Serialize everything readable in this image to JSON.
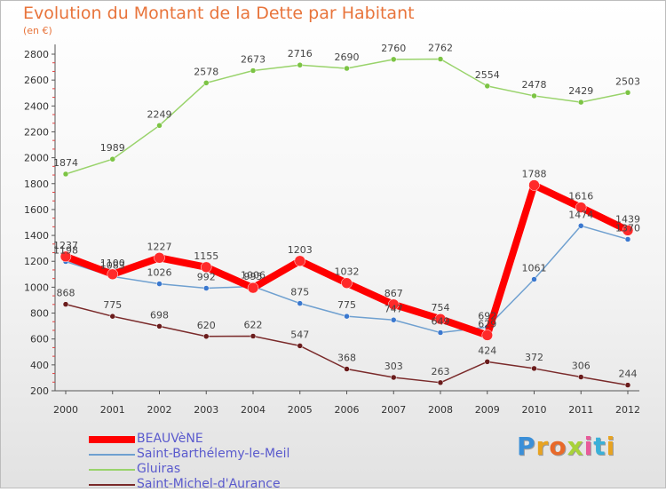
{
  "chart_data": {
    "type": "line",
    "title": "Evolution du Montant de la Dette par Habitant",
    "subtitle": "(en €)",
    "x": [
      "2000",
      "2001",
      "2002",
      "2003",
      "2004",
      "2005",
      "2006",
      "2007",
      "2008",
      "2009",
      "2010",
      "2011",
      "2012"
    ],
    "yticks": [
      200,
      400,
      600,
      800,
      1000,
      1200,
      1400,
      1600,
      1800,
      2000,
      2200,
      2400,
      2600,
      2800
    ],
    "ylim": [
      200,
      2800
    ],
    "grid": false,
    "legend_position": "bottom-left",
    "series": [
      {
        "name": "BEAUVèNE",
        "color": "#ff0000",
        "marker": "#ff2a2a",
        "width": 8,
        "values": [
          1237,
          1100,
          1227,
          1155,
          995,
          1203,
          1032,
          867,
          754,
          629,
          1788,
          1616,
          1439
        ]
      },
      {
        "name": "Saint-Barthélemy-le-Meil",
        "color": "#6fa0d0",
        "marker": "#3a78cf",
        "width": 1.5,
        "values": [
          1198,
          1083,
          1026,
          992,
          1006,
          875,
          775,
          747,
          649,
          692,
          1061,
          1474,
          1370
        ]
      },
      {
        "name": "Gluiras",
        "color": "#99d36b",
        "marker": "#7cc444",
        "width": 1.5,
        "values": [
          1874,
          1989,
          2249,
          2578,
          2673,
          2716,
          2690,
          2760,
          2762,
          2554,
          2478,
          2429,
          2503
        ]
      },
      {
        "name": "Saint-Michel-d'Aurance",
        "color": "#7a2a2a",
        "marker": "#6a1c1c",
        "width": 1.5,
        "values": [
          868,
          775,
          698,
          620,
          622,
          547,
          368,
          303,
          263,
          424,
          372,
          306,
          244
        ]
      }
    ]
  },
  "logo": {
    "letters": [
      "P",
      "r",
      "o",
      "x",
      "i",
      "t",
      "i"
    ],
    "colors": [
      "#3b8fd8",
      "#e8a321",
      "#e86a2a",
      "#a8d23a",
      "#e85a9a",
      "#3bb0d8",
      "#e8a321"
    ]
  }
}
